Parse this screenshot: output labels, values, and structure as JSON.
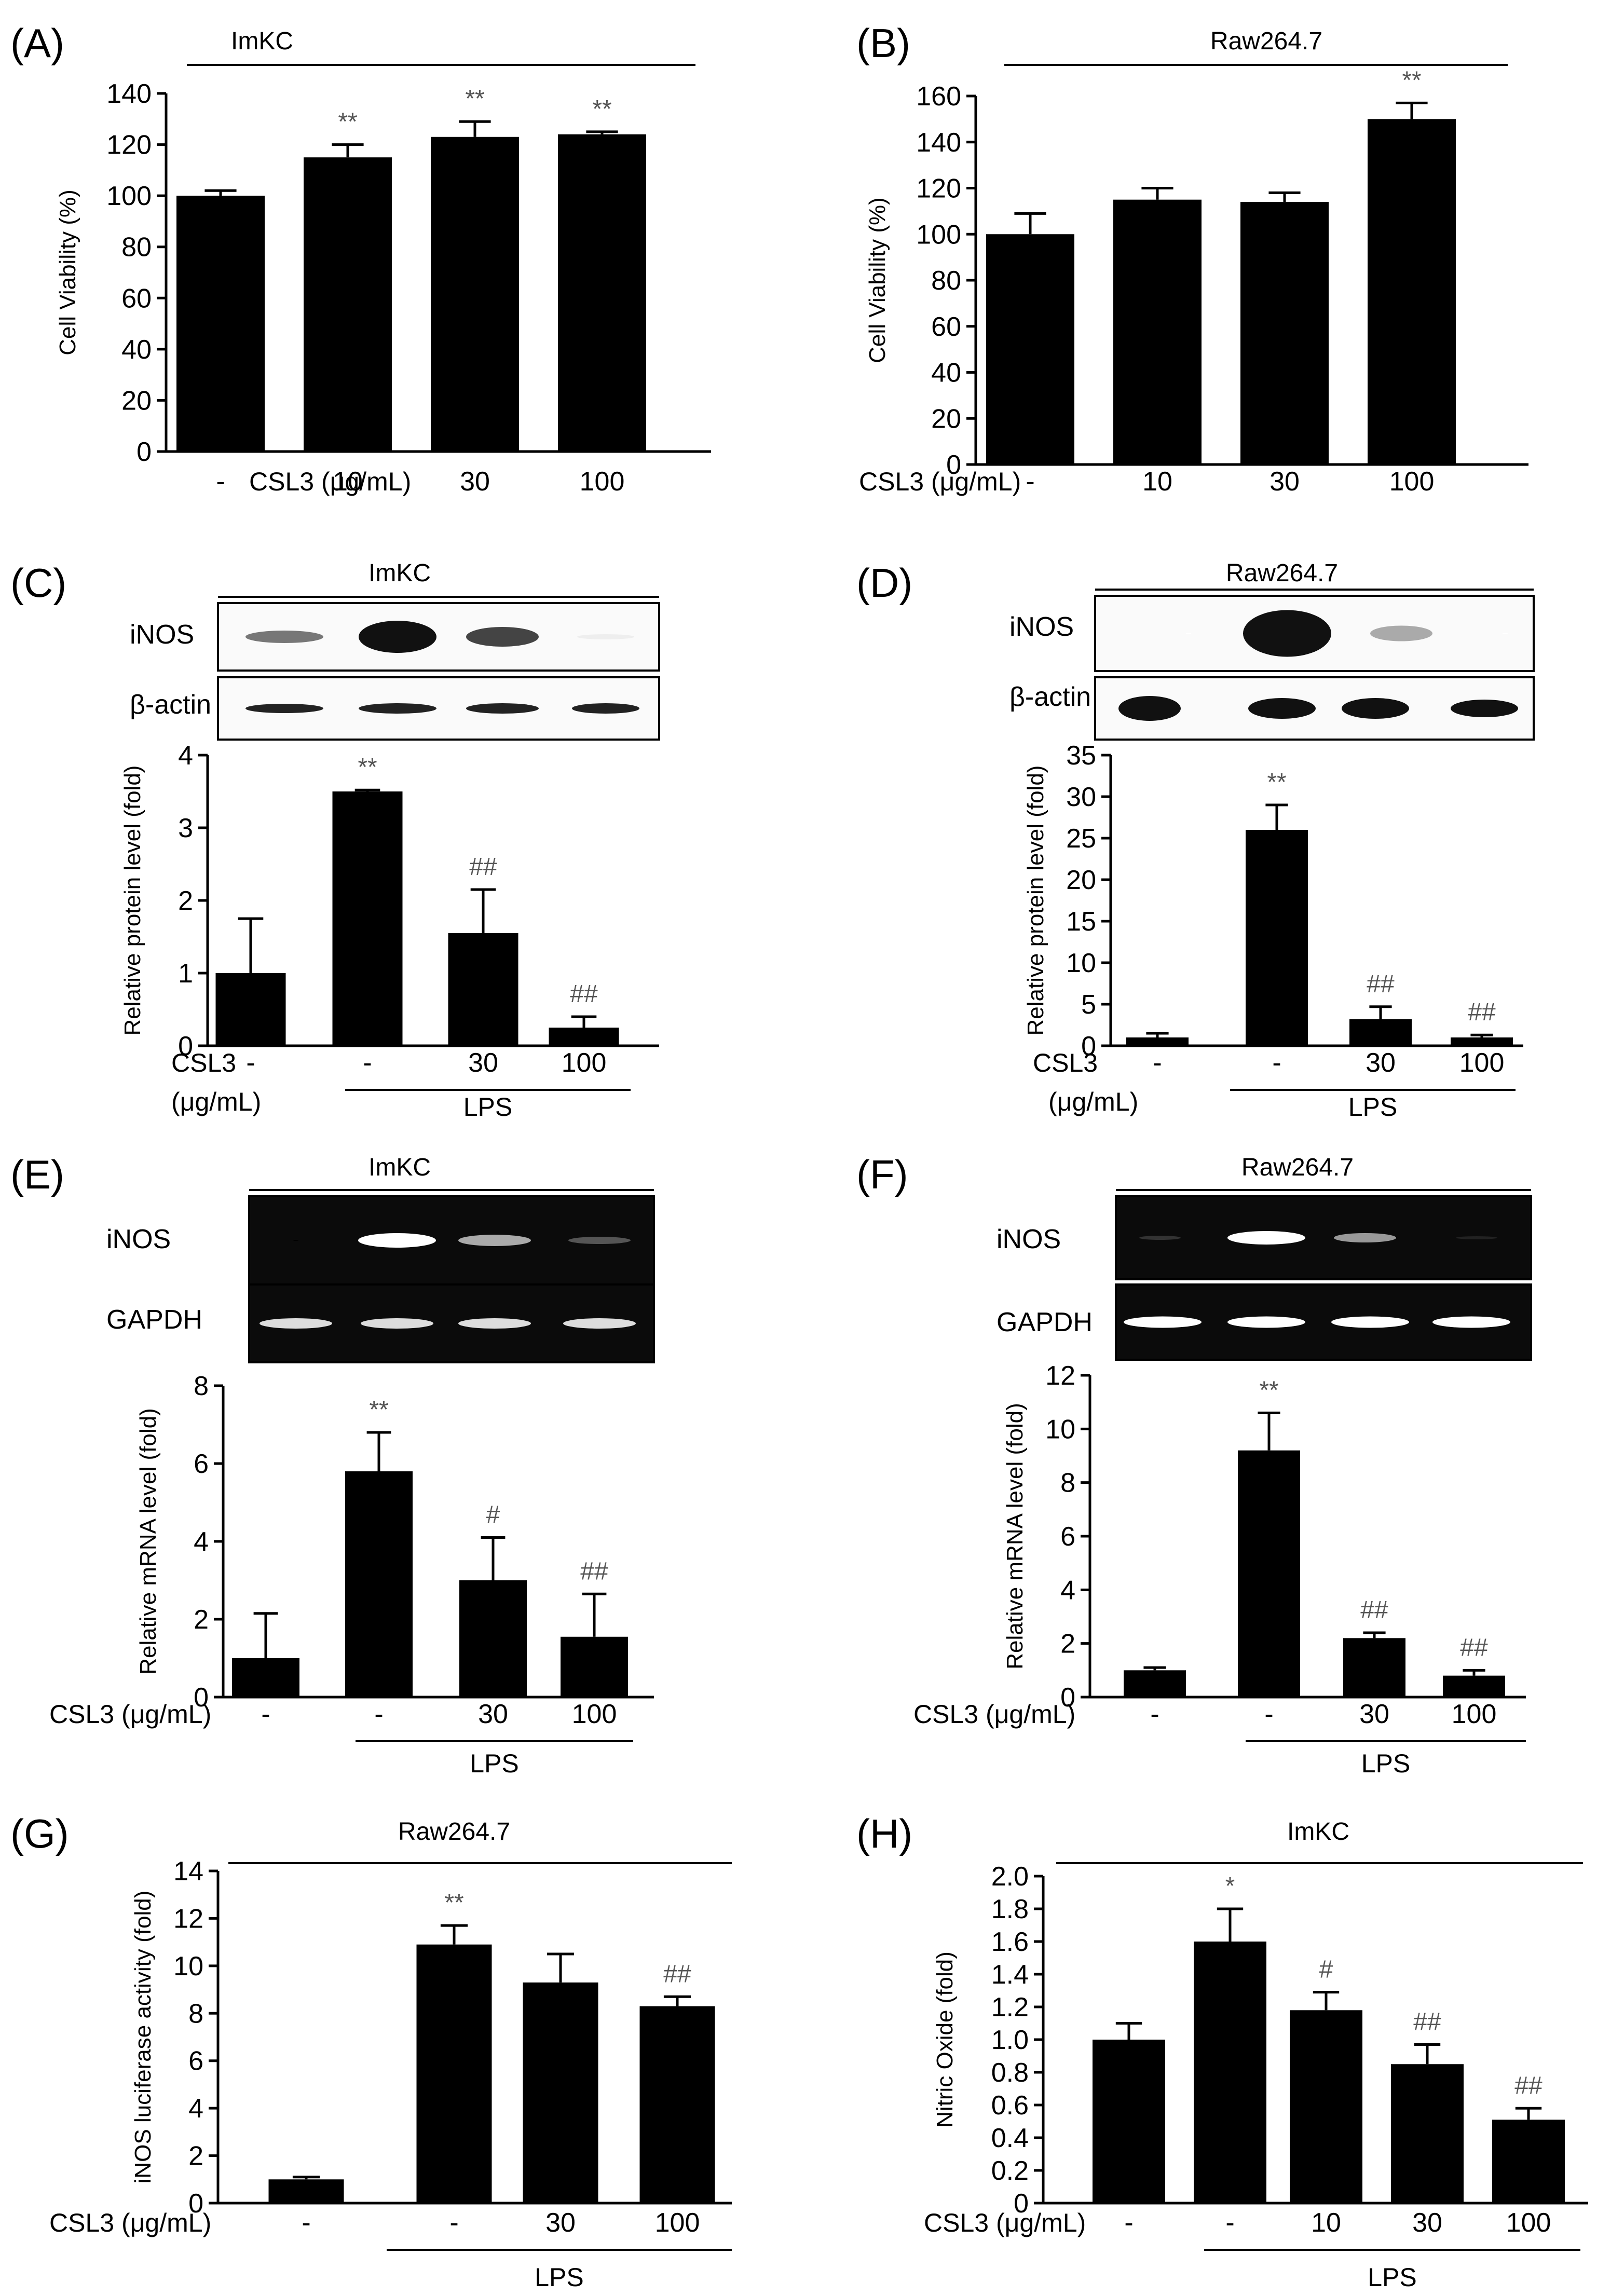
{
  "chart_data": [
    {
      "panel": "(A)",
      "type": "bar",
      "title": "ImKC",
      "ylabel": "Cell Viability (%)",
      "xlabel": "CSL3 (μg/mL)",
      "ylim": [
        0,
        140
      ],
      "yticks": [
        0,
        20,
        40,
        60,
        80,
        100,
        120,
        140
      ],
      "categories": [
        "-",
        "10",
        "30",
        "100"
      ],
      "values": [
        100,
        115,
        123,
        124
      ],
      "errors": [
        2,
        5,
        6,
        1
      ],
      "annotations": [
        "",
        "**",
        "**",
        "**"
      ]
    },
    {
      "panel": "(B)",
      "type": "bar",
      "title": "Raw264.7",
      "ylabel": "Cell Viability (%)",
      "xlabel": "CSL3 (μg/mL)",
      "ylim": [
        0,
        160
      ],
      "yticks": [
        0,
        20,
        40,
        60,
        80,
        100,
        120,
        140,
        160
      ],
      "categories": [
        "-",
        "10",
        "30",
        "100"
      ],
      "values": [
        100,
        115,
        114,
        150
      ],
      "errors": [
        9,
        5,
        4,
        7
      ],
      "annotations": [
        "",
        "",
        "",
        "**"
      ]
    },
    {
      "panel": "(C)",
      "type": "bar",
      "title": "ImKC",
      "blot_labels": [
        "iNOS",
        "β-actin"
      ],
      "ylabel": "Relative protein level (fold)",
      "xlabel": "CSL3",
      "xlabel2": "(μg/mL)",
      "group_label": "LPS",
      "ylim": [
        0,
        4
      ],
      "yticks": [
        0,
        1,
        2,
        3,
        4
      ],
      "categories": [
        "-",
        "-",
        "30",
        "100"
      ],
      "values": [
        1.0,
        3.5,
        1.55,
        0.25
      ],
      "errors": [
        0.75,
        0.02,
        0.6,
        0.15
      ],
      "annotations": [
        "",
        "**",
        "##",
        "##"
      ]
    },
    {
      "panel": "(D)",
      "type": "bar",
      "title": "Raw264.7",
      "blot_labels": [
        "iNOS",
        "β-actin"
      ],
      "ylabel": "Relative protein level (fold)",
      "xlabel": "CSL3",
      "xlabel2": "(μg/mL)",
      "group_label": "LPS",
      "ylim": [
        0,
        35
      ],
      "yticks": [
        0,
        5,
        10,
        15,
        20,
        25,
        30,
        35
      ],
      "categories": [
        "-",
        "-",
        "30",
        "100"
      ],
      "values": [
        1.0,
        26,
        3.2,
        1.0
      ],
      "errors": [
        0.5,
        3,
        1.5,
        0.3
      ],
      "annotations": [
        "",
        "**",
        "##",
        "##"
      ]
    },
    {
      "panel": "(E)",
      "type": "bar",
      "title": "ImKC",
      "blot_labels": [
        "iNOS",
        "GAPDH"
      ],
      "ylabel": "Relative mRNA level (fold)",
      "xlabel": "CSL3 (μg/mL)",
      "group_label": "LPS",
      "ylim": [
        0,
        8
      ],
      "yticks": [
        0,
        2,
        4,
        6,
        8
      ],
      "categories": [
        "-",
        "-",
        "30",
        "100"
      ],
      "values": [
        1.0,
        5.8,
        3.0,
        1.55
      ],
      "errors": [
        1.15,
        1.0,
        1.1,
        1.1
      ],
      "annotations": [
        "",
        "**",
        "#",
        "##"
      ]
    },
    {
      "panel": "(F)",
      "type": "bar",
      "title": "Raw264.7",
      "blot_labels": [
        "iNOS",
        "GAPDH"
      ],
      "ylabel": "Relative mRNA level (fold)",
      "xlabel": "CSL3 (μg/mL)",
      "group_label": "LPS",
      "ylim": [
        0,
        12
      ],
      "yticks": [
        0,
        2,
        4,
        6,
        8,
        10,
        12
      ],
      "categories": [
        "-",
        "-",
        "30",
        "100"
      ],
      "values": [
        1.0,
        9.2,
        2.2,
        0.8
      ],
      "errors": [
        0.1,
        1.4,
        0.2,
        0.2
      ],
      "annotations": [
        "",
        "**",
        "##",
        "##"
      ]
    },
    {
      "panel": "(G)",
      "type": "bar",
      "title": "Raw264.7",
      "ylabel": "iNOS luciferase activity (fold)",
      "xlabel": "CSL3 (μg/mL)",
      "group_label": "LPS",
      "ylim": [
        0,
        14
      ],
      "yticks": [
        0,
        2,
        4,
        6,
        8,
        10,
        12,
        14
      ],
      "categories": [
        "-",
        "-",
        "30",
        "100"
      ],
      "values": [
        1.0,
        10.9,
        9.3,
        8.3
      ],
      "errors": [
        0.1,
        0.8,
        1.2,
        0.4
      ],
      "annotations": [
        "",
        "**",
        "",
        "##"
      ]
    },
    {
      "panel": "(H)",
      "type": "bar",
      "title": "ImKC",
      "ylabel": "Nitric Oxide (fold)",
      "xlabel": "CSL3 (μg/mL)",
      "group_label": "LPS",
      "ylim": [
        0,
        2.0
      ],
      "yticks": [
        "0",
        "0.2",
        "0.4",
        "0.6",
        "0.8",
        "1.0",
        "1.2",
        "1.4",
        "1.6",
        "1.8",
        "2.0"
      ],
      "categories": [
        "-",
        "-",
        "10",
        "30",
        "100"
      ],
      "values": [
        1.0,
        1.6,
        1.18,
        0.85,
        0.51
      ],
      "errors": [
        0.1,
        0.2,
        0.11,
        0.12,
        0.07
      ],
      "annotations": [
        "",
        "*",
        "#",
        "##",
        "##"
      ]
    }
  ]
}
